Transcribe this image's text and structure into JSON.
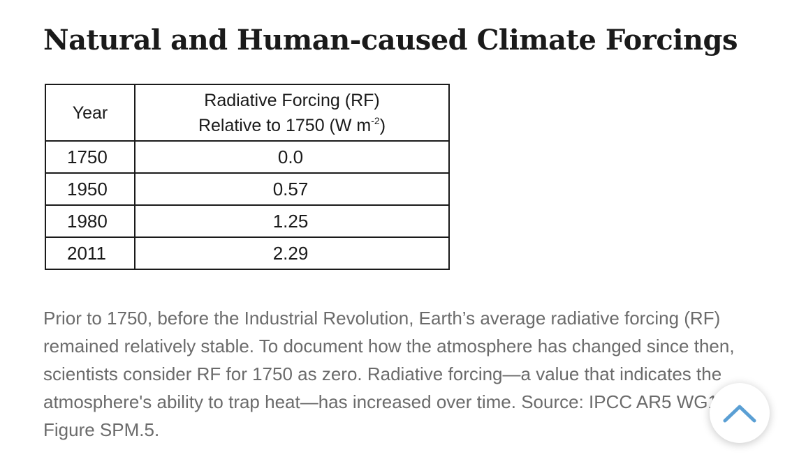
{
  "article": {
    "title": "Natural and Human-caused Climate Forcings",
    "caption": "Prior to 1750, before the Industrial Revolution, Earth’s average radiative forcing (RF) remained relatively stable. To document how the atmosphere has changed since then, scientists consider RF for 1750 as zero. Radiative forcing—a value that indicates the atmosphere's ability to trap heat—has increased over time. Source: IPCC AR5 WG1 Figure SPM.5."
  },
  "table": {
    "header_year": "Year",
    "header_rf_line1": "Radiative Forcing (RF)",
    "header_rf_line2_text": "Relative to 1750 (W m",
    "header_rf_line2_sup": "-2",
    "header_rf_line2_close": ")",
    "rows": [
      {
        "year": "1750",
        "rf": "0.0"
      },
      {
        "year": "1950",
        "rf": "0.57"
      },
      {
        "year": "1980",
        "rf": "1.25"
      },
      {
        "year": "2011",
        "rf": "2.29"
      }
    ]
  },
  "scroll_top": {
    "icon": "chevron-up-icon",
    "color": "#5a9fd4"
  }
}
